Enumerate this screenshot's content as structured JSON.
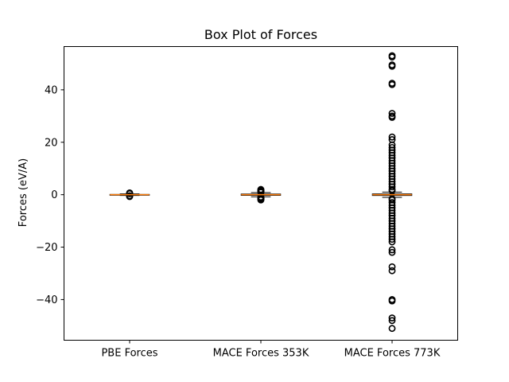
{
  "chart_data": {
    "type": "box",
    "title": "Box Plot of Forces",
    "xlabel": "",
    "ylabel": "Forces (eV/A)",
    "ylim": [
      -55.5,
      56.5
    ],
    "yticks": [
      -40,
      -20,
      0,
      20,
      40
    ],
    "ytick_labels": [
      "−40",
      "−20",
      "0",
      "20",
      "40"
    ],
    "categories": [
      "PBE Forces",
      "MACE Forces 353K",
      "MACE Forces 773K"
    ],
    "grid": false,
    "colors": {
      "median": "#ff7f0e",
      "box": "#000000",
      "flier": "#000000"
    },
    "boxes": [
      {
        "name": "PBE Forces",
        "q1": -0.1,
        "median": 0.0,
        "q3": 0.1,
        "whisker_low": -0.3,
        "whisker_high": 0.3,
        "fliers": [
          -0.7,
          -0.5,
          -0.4,
          0.4,
          0.5,
          0.7
        ]
      },
      {
        "name": "MACE Forces 353K",
        "q1": -0.25,
        "median": 0.0,
        "q3": 0.25,
        "whisker_low": -0.8,
        "whisker_high": 0.8,
        "fliers": [
          -2.0,
          -1.8,
          -1.6,
          -1.4,
          -1.2,
          -1.0,
          -0.9,
          0.9,
          1.0,
          1.2,
          1.4,
          1.6,
          1.8,
          2.0
        ]
      },
      {
        "name": "MACE Forces 773K",
        "q1": -0.3,
        "median": 0.0,
        "q3": 0.3,
        "whisker_low": -1.0,
        "whisker_high": 1.0,
        "fliers": [
          53,
          52.5,
          49.5,
          49,
          42.5,
          42,
          31,
          30,
          29.5,
          22,
          21,
          19,
          18,
          17,
          16,
          15,
          14,
          13,
          12,
          11,
          10,
          9,
          8,
          7,
          6,
          5,
          4,
          3,
          2,
          1.5,
          -1.5,
          -2,
          -3,
          -4,
          -5,
          -6,
          -7,
          -8,
          -9,
          -10,
          -11,
          -12,
          -13,
          -14,
          -15,
          -16,
          -17,
          -18,
          -21,
          -22,
          -27.5,
          -29,
          -40,
          -40.5,
          -47,
          -48,
          -51
        ]
      }
    ]
  }
}
